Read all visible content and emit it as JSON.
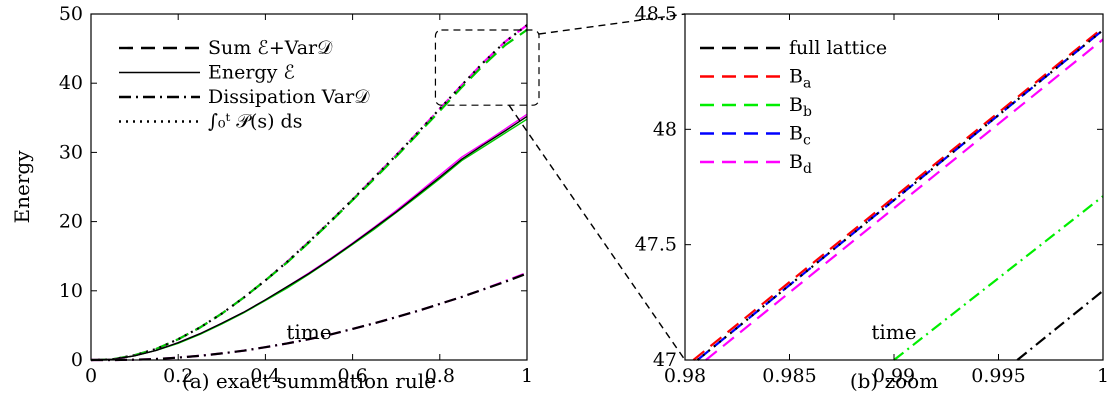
{
  "chart_data": [
    {
      "type": "line",
      "caption": "(a) exact summation rule",
      "xlabel": "time",
      "ylabel": "Energy",
      "xlim": [
        0,
        1
      ],
      "ylim": [
        0,
        50
      ],
      "xticks": [
        0,
        0.2,
        0.4,
        0.6,
        0.8,
        1
      ],
      "xtick_labels": [
        "0",
        "0.2",
        "0.4",
        "0.6",
        "0.8",
        "1"
      ],
      "yticks": [
        0,
        10,
        20,
        30,
        40,
        50
      ],
      "ytick_labels": [
        "0",
        "10",
        "20",
        "30",
        "40",
        "50"
      ],
      "grid": false,
      "legend_position": "top-left",
      "legend": [
        {
          "label": "Sum ℰ+Var𝒟",
          "style": "dashed",
          "color": "#000000"
        },
        {
          "label": "Energy ℰ",
          "style": "solid",
          "color": "#000000"
        },
        {
          "label": "Dissipation Var𝒟",
          "style": "dashdot",
          "color": "#000000"
        },
        {
          "label": "∫₀ᵗ 𝒫(s) ds",
          "style": "dotted",
          "color": "#000000"
        }
      ],
      "x": [
        0,
        0.05,
        0.1,
        0.15,
        0.2,
        0.25,
        0.3,
        0.35,
        0.4,
        0.45,
        0.5,
        0.55,
        0.6,
        0.65,
        0.7,
        0.75,
        0.8,
        0.85,
        0.9,
        0.95,
        1.0
      ],
      "series": [
        {
          "group": "sum",
          "style": "dashed",
          "color": "#ff00ff",
          "values": [
            0,
            0.1,
            0.7,
            1.6,
            3.0,
            4.7,
            6.7,
            9.0,
            11.5,
            14.2,
            17.1,
            20.1,
            23.2,
            26.4,
            29.6,
            32.9,
            36.3,
            39.7,
            43.0,
            46.0,
            48.4
          ]
        },
        {
          "group": "sum",
          "style": "dashed",
          "color": "#00cc00",
          "values": [
            0,
            0.1,
            0.7,
            1.6,
            3.0,
            4.7,
            6.7,
            9.0,
            11.5,
            14.1,
            17.0,
            20.0,
            23.1,
            26.2,
            29.4,
            32.7,
            36.0,
            39.4,
            42.6,
            45.5,
            47.7
          ]
        },
        {
          "group": "power",
          "style": "dotted",
          "color": "#000000",
          "values": [
            0,
            0.1,
            0.7,
            1.6,
            3.0,
            4.7,
            6.7,
            9.0,
            11.5,
            14.2,
            17.1,
            20.1,
            23.2,
            26.4,
            29.6,
            32.9,
            36.3,
            39.7,
            43.0,
            46.0,
            48.4
          ]
        },
        {
          "group": "energy",
          "style": "solid",
          "color": "#ff00ff",
          "values": [
            0,
            0.1,
            0.6,
            1.4,
            2.5,
            3.8,
            5.3,
            6.9,
            8.7,
            10.6,
            12.6,
            14.7,
            16.9,
            19.2,
            21.6,
            24.1,
            26.7,
            29.3,
            31.3,
            33.4,
            35.5
          ]
        },
        {
          "group": "energy",
          "style": "solid",
          "color": "#00cc00",
          "values": [
            0,
            0.1,
            0.6,
            1.4,
            2.4,
            3.7,
            5.2,
            6.8,
            8.6,
            10.4,
            12.4,
            14.5,
            16.7,
            18.9,
            21.3,
            23.7,
            26.2,
            28.8,
            30.8,
            32.8,
            34.8
          ]
        },
        {
          "group": "energy",
          "style": "solid",
          "color": "#000000",
          "values": [
            0,
            0.1,
            0.6,
            1.4,
            2.5,
            3.8,
            5.3,
            6.9,
            8.7,
            10.6,
            12.5,
            14.6,
            16.8,
            19.1,
            21.4,
            23.9,
            26.4,
            29.0,
            31.1,
            33.1,
            35.2
          ]
        },
        {
          "group": "dissipation",
          "style": "dashdot",
          "color": "#ff00ff",
          "values": [
            0,
            0,
            0.05,
            0.15,
            0.35,
            0.6,
            0.95,
            1.35,
            1.85,
            2.4,
            3.0,
            3.7,
            4.5,
            5.3,
            6.2,
            7.1,
            8.1,
            9.1,
            10.2,
            11.4,
            12.6
          ]
        },
        {
          "group": "dissipation",
          "style": "dashdot",
          "color": "#000000",
          "values": [
            0,
            0,
            0.05,
            0.15,
            0.35,
            0.6,
            0.95,
            1.35,
            1.85,
            2.4,
            3.0,
            3.7,
            4.5,
            5.3,
            6.2,
            7.1,
            8.1,
            9.1,
            10.2,
            11.3,
            12.5
          ]
        }
      ],
      "zoom_box": {
        "x": [
          0.79,
          1.0
        ],
        "y": [
          40,
          50
        ]
      }
    },
    {
      "type": "line",
      "caption": "(b) zoom",
      "xlabel": "time",
      "ylabel": "",
      "xlim": [
        0.98,
        1
      ],
      "ylim": [
        47,
        48.5
      ],
      "xticks": [
        0.98,
        0.985,
        0.99,
        0.995,
        1
      ],
      "xtick_labels": [
        "0.98",
        "0.985",
        "0.99",
        "0.995",
        "1"
      ],
      "yticks": [
        47,
        47.5,
        48,
        48.5
      ],
      "ytick_labels": [
        "47",
        "47.5",
        "48",
        "48.5"
      ],
      "grid": false,
      "legend_position": "top-left",
      "legend": [
        {
          "label": "full lattice",
          "sub": "",
          "style": "dashed",
          "color": "#000000"
        },
        {
          "label": "B",
          "sub": "a",
          "style": "dashed",
          "color": "#ff0000"
        },
        {
          "label": "B",
          "sub": "b",
          "style": "dashed",
          "color": "#00ee00"
        },
        {
          "label": "B",
          "sub": "c",
          "style": "dashed",
          "color": "#0000ff"
        },
        {
          "label": "B",
          "sub": "d",
          "style": "dashed",
          "color": "#ff00ff"
        }
      ],
      "series": [
        {
          "name": "B",
          "style": "dashed",
          "color": "#ff0000",
          "x": [
            0.9804,
            1.0
          ],
          "values": [
            47.0,
            48.44
          ]
        },
        {
          "name": "B",
          "style": "dashed",
          "color": "#0000ff",
          "x": [
            0.9806,
            1.0
          ],
          "values": [
            47.0,
            48.43
          ]
        },
        {
          "style": "dotted",
          "color": "#000000",
          "x": [
            0.9806,
            1.0
          ],
          "values": [
            47.0,
            48.43
          ]
        },
        {
          "name": "B",
          "style": "dashed",
          "color": "#ff00ff",
          "x": [
            0.981,
            1.0
          ],
          "values": [
            47.0,
            48.39
          ]
        },
        {
          "style": "dashdot",
          "color": "#00ee00",
          "x": [
            0.99,
            1.0
          ],
          "values": [
            47.0,
            47.71
          ]
        },
        {
          "style": "dashdot",
          "color": "#000000",
          "x": [
            0.9959,
            1.0
          ],
          "values": [
            47.0,
            47.3
          ]
        }
      ]
    }
  ]
}
